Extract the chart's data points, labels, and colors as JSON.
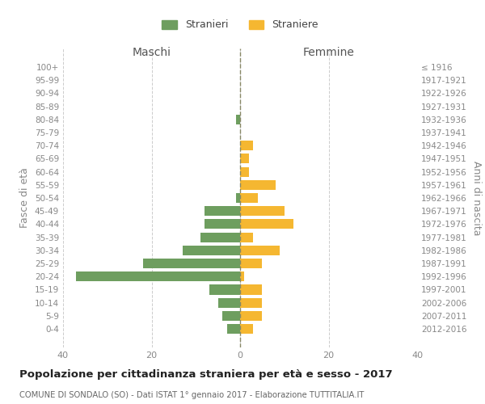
{
  "age_groups": [
    "0-4",
    "5-9",
    "10-14",
    "15-19",
    "20-24",
    "25-29",
    "30-34",
    "35-39",
    "40-44",
    "45-49",
    "50-54",
    "55-59",
    "60-64",
    "65-69",
    "70-74",
    "75-79",
    "80-84",
    "85-89",
    "90-94",
    "95-99",
    "100+"
  ],
  "birth_years": [
    "2012-2016",
    "2007-2011",
    "2002-2006",
    "1997-2001",
    "1992-1996",
    "1987-1991",
    "1982-1986",
    "1977-1981",
    "1972-1976",
    "1967-1971",
    "1962-1966",
    "1957-1961",
    "1952-1956",
    "1947-1951",
    "1942-1946",
    "1937-1941",
    "1932-1936",
    "1927-1931",
    "1922-1926",
    "1917-1921",
    "≤ 1916"
  ],
  "males": [
    3,
    4,
    5,
    7,
    37,
    22,
    13,
    9,
    8,
    8,
    1,
    0,
    0,
    0,
    0,
    0,
    1,
    0,
    0,
    0,
    0
  ],
  "females": [
    3,
    5,
    5,
    5,
    1,
    5,
    9,
    3,
    12,
    10,
    4,
    8,
    2,
    2,
    3,
    0,
    0,
    0,
    0,
    0,
    0
  ],
  "male_color": "#6e9e5f",
  "female_color": "#f5b731",
  "male_label": "Stranieri",
  "female_label": "Straniere",
  "title": "Popolazione per cittadinanza straniera per età e sesso - 2017",
  "subtitle": "COMUNE DI SONDALO (SO) - Dati ISTAT 1° gennaio 2017 - Elaborazione TUTTITALIA.IT",
  "ylabel_left": "Fasce di età",
  "ylabel_right": "Anni di nascita",
  "xlabel_left": "Maschi",
  "xlabel_right": "Femmine",
  "xlim": 40,
  "bg_color": "#ffffff",
  "grid_color": "#cccccc"
}
